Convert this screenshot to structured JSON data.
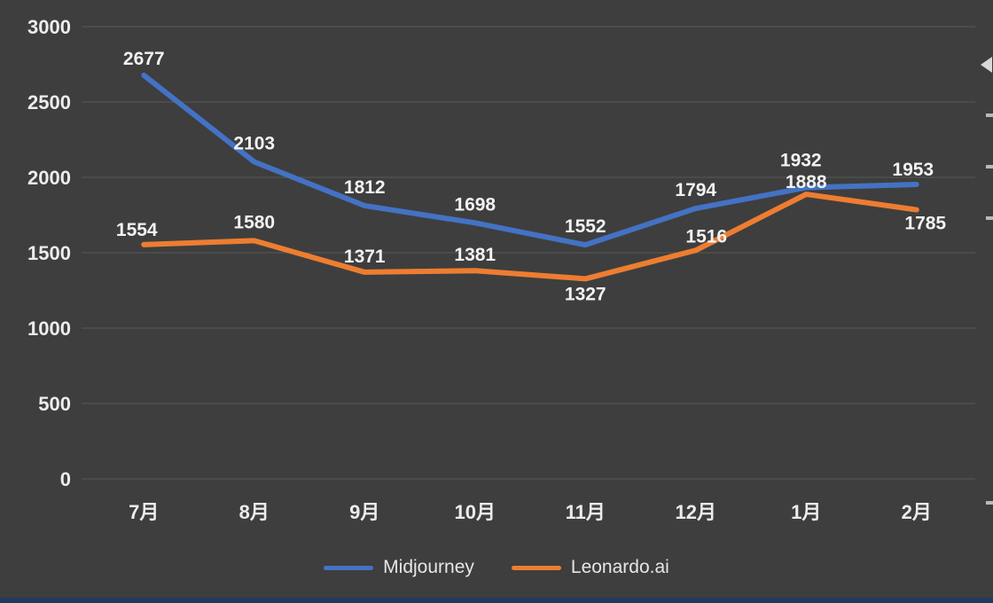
{
  "chart_data": {
    "type": "line",
    "title": "",
    "categories": [
      "7月",
      "8月",
      "9月",
      "10月",
      "11月",
      "12月",
      "1月",
      "2月"
    ],
    "series": [
      {
        "name": "Midjourney",
        "color": "#4472c4",
        "values": [
          2677,
          2103,
          1812,
          1698,
          1552,
          1794,
          1932,
          1953
        ]
      },
      {
        "name": "Leonardo.ai",
        "color": "#ed7d31",
        "values": [
          1554,
          1580,
          1371,
          1381,
          1327,
          1516,
          1888,
          1785
        ]
      }
    ],
    "y_axis": {
      "min": 0,
      "max": 3000,
      "step": 500,
      "tick_labels": [
        "0",
        "500",
        "1000",
        "1500",
        "2000",
        "2500",
        "3000"
      ]
    },
    "grid": true,
    "data_labels_shown": true,
    "legend_position": "bottom",
    "colors": {
      "background": "#3e3e3e",
      "gridline": "#585858",
      "axis_text": "#ececec",
      "data_label_text": "#f2f2f2",
      "legend_text": "#e6e6e6",
      "bottom_strip": "#213a5e"
    }
  }
}
